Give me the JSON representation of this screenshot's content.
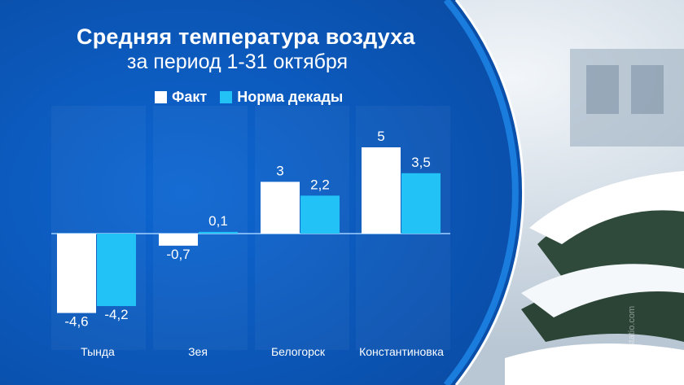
{
  "title": "Средняя температура воздуха",
  "subtitle": "за период 1-31 октября",
  "watermark": "picstatio.com",
  "colors": {
    "background_panel": "#0b5cc4",
    "fact": "#ffffff",
    "norm": "#22c2f7",
    "text": "#ffffff"
  },
  "legend": [
    {
      "name": "Факт",
      "color": "#ffffff"
    },
    {
      "name": "Норма декады",
      "color": "#22c2f7"
    }
  ],
  "chart_data": {
    "type": "bar",
    "title": "Средняя температура воздуха",
    "subtitle": "за период 1-31 октября",
    "categories": [
      "Тында",
      "Зея",
      "Белогорск",
      "Константиновка"
    ],
    "series": [
      {
        "name": "Факт",
        "values": [
          -4.6,
          -0.7,
          3,
          5
        ],
        "labels": [
          "-4,6",
          "-0,7",
          "3",
          "5"
        ],
        "color": "#ffffff"
      },
      {
        "name": "Норма декады",
        "values": [
          -4.2,
          0.1,
          2.2,
          3.5
        ],
        "labels": [
          "-4,2",
          "0,1",
          "2,2",
          "3,5"
        ],
        "color": "#22c2f7"
      }
    ],
    "legend_position": "top",
    "grid": false
  }
}
